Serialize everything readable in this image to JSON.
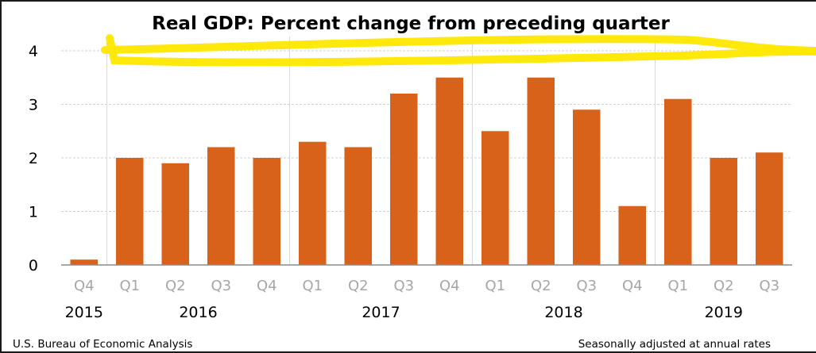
{
  "chart_data": {
    "type": "bar",
    "title": "Real GDP:  Percent change from preceding quarter",
    "xlabel": "",
    "ylabel": "",
    "ylim": [
      0,
      4
    ],
    "yticks": [
      0,
      1,
      2,
      3,
      4
    ],
    "grid": true,
    "categories": [
      "Q4",
      "Q1",
      "Q2",
      "Q3",
      "Q4",
      "Q1",
      "Q2",
      "Q3",
      "Q4",
      "Q1",
      "Q2",
      "Q3",
      "Q4",
      "Q1",
      "Q2",
      "Q3"
    ],
    "years": [
      {
        "label": "2015",
        "start": 0,
        "end": 0
      },
      {
        "label": "2016",
        "start": 1,
        "end": 4
      },
      {
        "label": "2017",
        "start": 5,
        "end": 8
      },
      {
        "label": "2018",
        "start": 9,
        "end": 12
      },
      {
        "label": "2019",
        "start": 13,
        "end": 15
      }
    ],
    "values": [
      0.1,
      2.0,
      1.9,
      2.2,
      2.0,
      2.3,
      2.2,
      3.2,
      3.5,
      2.5,
      3.5,
      2.9,
      1.1,
      3.1,
      2.0,
      2.1
    ],
    "bar_color": "#d9621a",
    "annotation": "yellow hand-drawn highlight along the 4% gridline",
    "annotation_color": "#ffe800"
  },
  "footer": {
    "source": "U.S. Bureau of Economic Analysis",
    "note": "Seasonally adjusted at annual rates"
  }
}
